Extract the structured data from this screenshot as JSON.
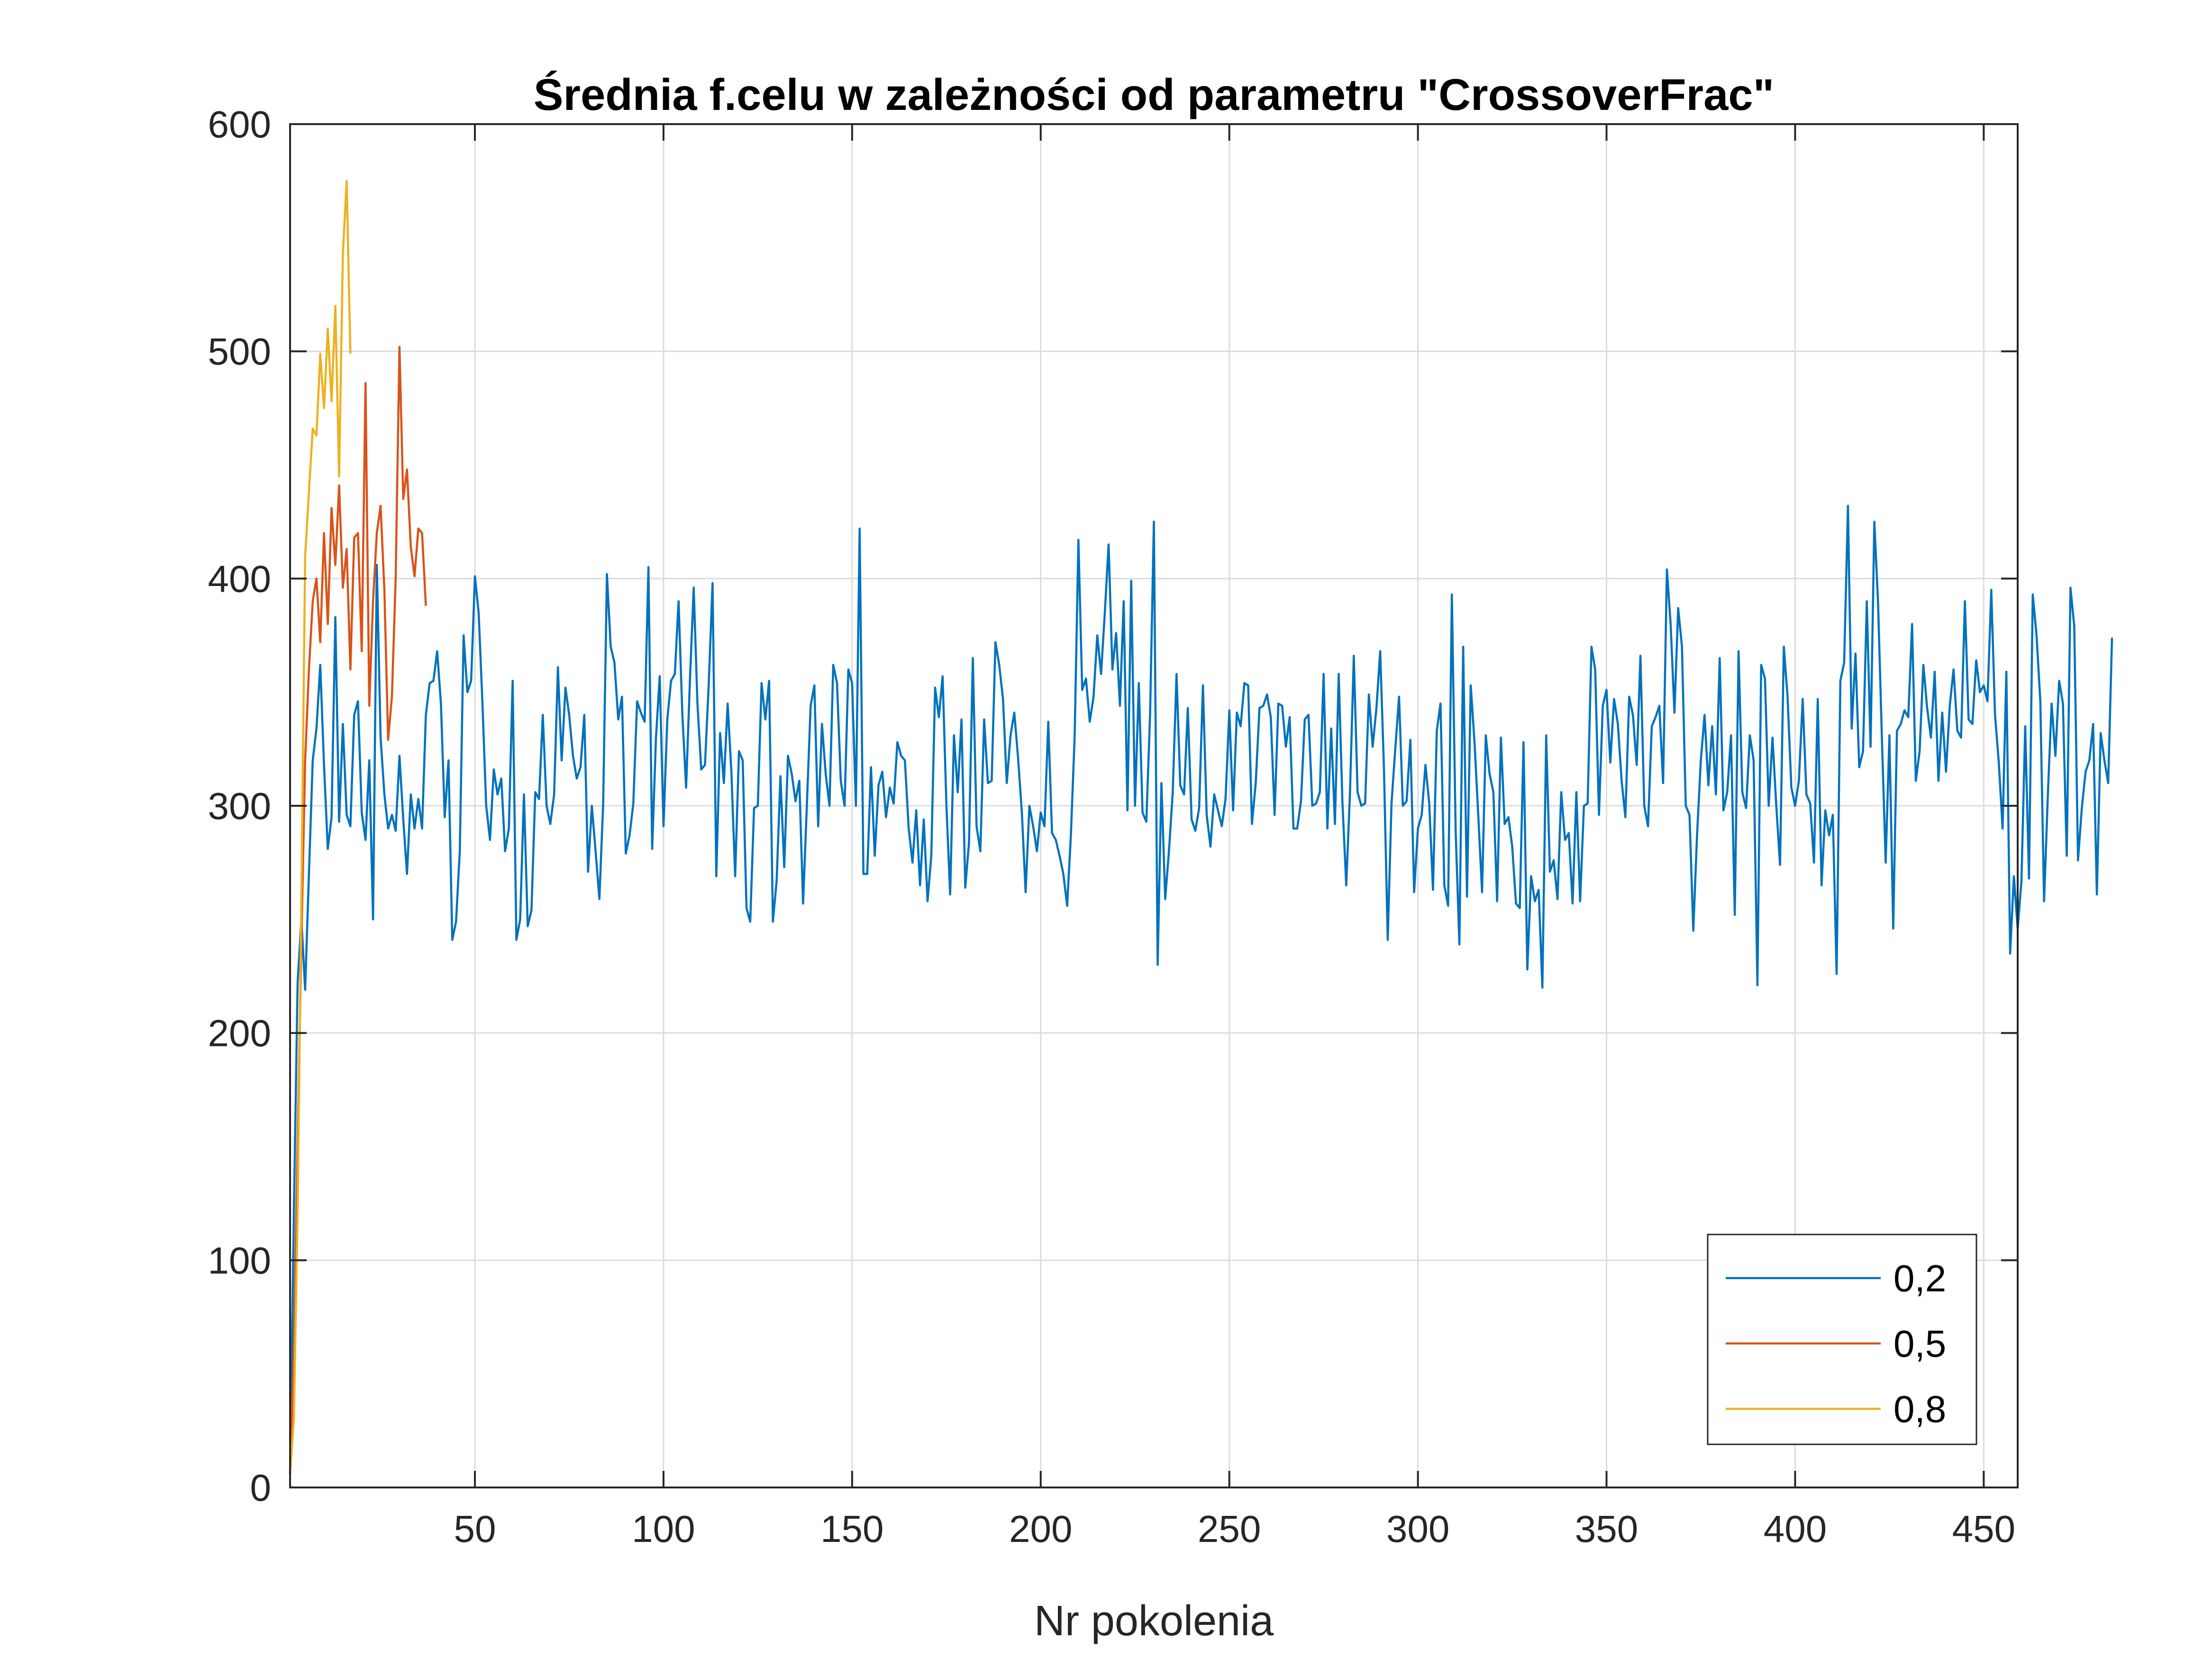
{
  "chart_data": {
    "type": "line",
    "title": "Średnia f.celu w zależności od parametru \"CrossoverFrac\"",
    "xlabel": "Nr pokolenia",
    "ylabel": "",
    "xlim": [
      1,
      459
    ],
    "ylim": [
      0,
      600
    ],
    "xticks": [
      50,
      100,
      150,
      200,
      250,
      300,
      350,
      400,
      450
    ],
    "yticks": [
      0,
      100,
      200,
      300,
      400,
      500,
      600
    ],
    "grid": true,
    "legend_position": "bottom-right",
    "series": [
      {
        "name": "0,2",
        "color": "#0072BD",
        "x_start": 1,
        "values": [
          6,
          120,
          222,
          250,
          219,
          270,
          320,
          334,
          362,
          318,
          281,
          295,
          383,
          293,
          336,
          296,
          291,
          340,
          346,
          297,
          285,
          320,
          250,
          406,
          330,
          305,
          290,
          296,
          289,
          322,
          294,
          270,
          305,
          290,
          303,
          290,
          340,
          354,
          355,
          368,
          345,
          295,
          320,
          241,
          249,
          280,
          375,
          350,
          355,
          401,
          385,
          345,
          300,
          285,
          316,
          305,
          312,
          280,
          290,
          355,
          241,
          250,
          305,
          247,
          254,
          306,
          303,
          340,
          300,
          292,
          305,
          361,
          320,
          352,
          340,
          322,
          312,
          317,
          340,
          271,
          300,
          280,
          259,
          301,
          402,
          370,
          363,
          338,
          348,
          279,
          287,
          301,
          346,
          341,
          337,
          405,
          281,
          330,
          357,
          291,
          338,
          355,
          358,
          390,
          340,
          308,
          355,
          396,
          345,
          316,
          318,
          354,
          398,
          269,
          332,
          310,
          345,
          315,
          269,
          324,
          320,
          255,
          249,
          299,
          300,
          354,
          338,
          355,
          249,
          267,
          313,
          273,
          322,
          314,
          302,
          311,
          257,
          300,
          344,
          353,
          291,
          336,
          314,
          300,
          362,
          354,
          311,
          300,
          360,
          354,
          300,
          422,
          270,
          270,
          317,
          278,
          309,
          315,
          295,
          308,
          301,
          328,
          322,
          320,
          290,
          275,
          298,
          265,
          294,
          258,
          278,
          352,
          339,
          357,
          300,
          261,
          331,
          306,
          338,
          264,
          284,
          365,
          291,
          280,
          338,
          310,
          311,
          372,
          362,
          347,
          310,
          331,
          341,
          321,
          297,
          262,
          300,
          291,
          280,
          297,
          291,
          337,
          288,
          285,
          278,
          270,
          256,
          287,
          331,
          417,
          351,
          356,
          337,
          348,
          375,
          358,
          385,
          415,
          360,
          376,
          344,
          390,
          298,
          399,
          300,
          354,
          297,
          293,
          340,
          425,
          230,
          310,
          259,
          280,
          306,
          358,
          309,
          305,
          343,
          294,
          289,
          299,
          353,
          296,
          282,
          305,
          298,
          291,
          303,
          342,
          298,
          341,
          335,
          354,
          353,
          292,
          310,
          343,
          344,
          349,
          339,
          296,
          345,
          344,
          326,
          339,
          290,
          290,
          302,
          338,
          340,
          300,
          301,
          306,
          358,
          290,
          334,
          292,
          358,
          301,
          265,
          306,
          366,
          306,
          300,
          301,
          349,
          326,
          343,
          368,
          316,
          241,
          301,
          325,
          348,
          300,
          302,
          329,
          262,
          290,
          296,
          318,
          301,
          263,
          333,
          345,
          265,
          256,
          393,
          289,
          239,
          370,
          260,
          353,
          328,
          296,
          262,
          331,
          314,
          306,
          258,
          330,
          292,
          295,
          282,
          257,
          255,
          328,
          228,
          269,
          258,
          263,
          220,
          331,
          271,
          276,
          259,
          306,
          285,
          288,
          257,
          306,
          258,
          300,
          301,
          370,
          360,
          296,
          344,
          351,
          319,
          347,
          336,
          311,
          295,
          348,
          340,
          318,
          366,
          300,
          291,
          335,
          339,
          344,
          310,
          404,
          380,
          341,
          387,
          370,
          300,
          296,
          245,
          287,
          320,
          340,
          309,
          335,
          305,
          365,
          298,
          306,
          331,
          252,
          368,
          306,
          299,
          331,
          320,
          221,
          362,
          356,
          300,
          330,
          300,
          274,
          370,
          348,
          308,
          300,
          311,
          347,
          305,
          301,
          275,
          347,
          265,
          298,
          287,
          296,
          226,
          355,
          363,
          432,
          334,
          367,
          317,
          324,
          390,
          326,
          425,
          389,
          330,
          275,
          331,
          246,
          333,
          336,
          342,
          339,
          380,
          311,
          324,
          362,
          343,
          330,
          359,
          311,
          341,
          315,
          344,
          360,
          333,
          330,
          390,
          338,
          336,
          364,
          350,
          353,
          346,
          395,
          340,
          319,
          290,
          359,
          235,
          269,
          246,
          267,
          335,
          268,
          393,
          375,
          346,
          258,
          305,
          345,
          322,
          355,
          345,
          278,
          396,
          379,
          276,
          299,
          315,
          320,
          336,
          261,
          332,
          320,
          310,
          374
        ]
      },
      {
        "name": "0,5",
        "color": "#D95319",
        "x_start": 1,
        "values": [
          6,
          60,
          150,
          240,
          320,
          360,
          390,
          400,
          372,
          420,
          380,
          431,
          406,
          441,
          396,
          413,
          360,
          418,
          420,
          368,
          486,
          344,
          390,
          420,
          432,
          395,
          329,
          348,
          400,
          502,
          435,
          448,
          414,
          401,
          422,
          420,
          388
        ]
      },
      {
        "name": "0,8",
        "color": "#EDB120",
        "x_start": 1,
        "values": [
          6,
          30,
          120,
          260,
          410,
          438,
          466,
          463,
          499,
          475,
          510,
          478,
          520,
          445,
          543,
          575,
          499
        ]
      }
    ]
  }
}
